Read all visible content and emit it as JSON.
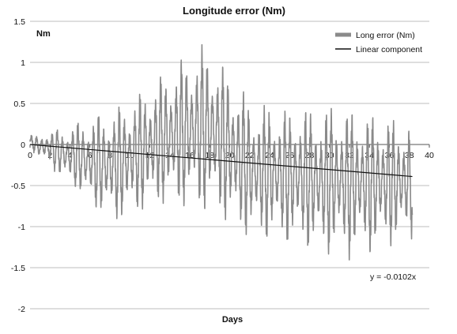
{
  "chart_data": {
    "type": "line",
    "title": "Longitude error (Nm)",
    "xlabel": "Days",
    "ylabel": "Nm",
    "xlim": [
      0,
      40
    ],
    "ylim": [
      -2,
      1.5
    ],
    "x_ticks": [
      "0",
      "2",
      "4",
      "6",
      "8",
      "10",
      "12",
      "14",
      "16",
      "18",
      "20",
      "22",
      "24",
      "26",
      "28",
      "30",
      "32",
      "34",
      "36",
      "38",
      "40"
    ],
    "y_ticks": [
      "1.5",
      "1",
      "0.5",
      "0",
      "-0.5",
      "-1",
      "-1.5",
      "-2"
    ],
    "grid": "horizontal",
    "legend_position": "top-right",
    "series": [
      {
        "name": "Long error (Nm)",
        "color": "#8a8a8a",
        "style": "oscillating",
        "x": [
          0,
          1,
          2,
          3,
          4,
          5,
          6,
          7,
          8,
          9,
          10,
          11,
          12,
          13,
          14,
          15,
          16,
          17,
          18,
          19,
          20,
          21,
          22,
          23,
          24,
          25,
          26,
          27,
          28,
          29,
          30,
          31,
          32,
          33,
          34,
          35,
          36,
          37,
          38.3
        ],
        "upper": [
          0.12,
          0.1,
          0.18,
          0.2,
          0.25,
          0.3,
          0.35,
          0.4,
          0.45,
          0.5,
          0.58,
          0.65,
          0.75,
          0.85,
          0.95,
          1.05,
          1.15,
          1.22,
          1.2,
          1.05,
          0.9,
          0.75,
          0.55,
          0.5,
          0.5,
          0.48,
          0.45,
          0.5,
          0.48,
          0.45,
          0.5,
          0.5,
          0.45,
          0.45,
          0.4,
          0.4,
          0.35,
          0.3,
          0.3
        ],
        "lower": [
          -0.05,
          -0.15,
          -0.25,
          -0.4,
          -0.5,
          -0.6,
          -0.75,
          -0.85,
          -0.95,
          -0.95,
          -0.9,
          -0.85,
          -0.8,
          -0.75,
          -0.75,
          -0.8,
          -0.8,
          -0.85,
          -0.85,
          -0.9,
          -1.0,
          -1.1,
          -1.15,
          -1.15,
          -1.2,
          -1.2,
          -1.25,
          -1.25,
          -1.3,
          -1.35,
          -1.35,
          -1.35,
          -1.4,
          -1.35,
          -1.35,
          -1.3,
          -1.25,
          -1.2,
          -1.15
        ]
      },
      {
        "name": "Linear component",
        "color": "#111111",
        "x": [
          0,
          38.3
        ],
        "y": [
          0,
          -0.39
        ]
      }
    ],
    "annotations": [
      {
        "text": "y = -0.0102x"
      }
    ]
  }
}
